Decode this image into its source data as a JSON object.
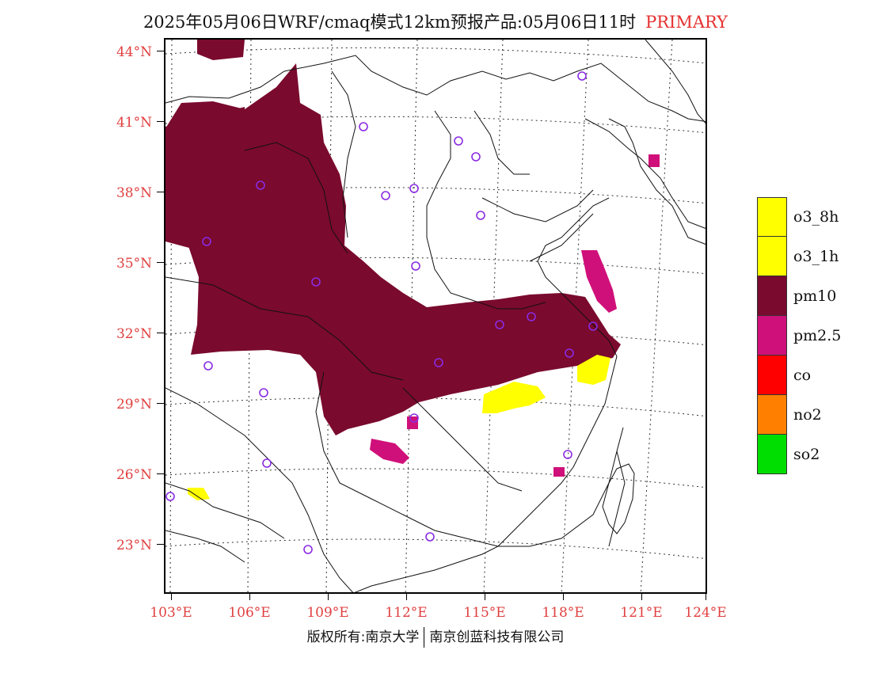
{
  "title": {
    "text": "2025年05月06日WRF/cmaq模式12km预报产品:05月06日11时",
    "tag": "PRIMARY",
    "tag_color": "#e53030"
  },
  "map": {
    "projection": "lambert",
    "lon_range": [
      103,
      124
    ],
    "lat_range": [
      22,
      44
    ],
    "lat_labels": [
      "44°N",
      "41°N",
      "38°N",
      "35°N",
      "32°N",
      "29°N",
      "26°N",
      "23°N"
    ],
    "lon_labels": [
      "103°E",
      "106°E",
      "109°E",
      "112°E",
      "115°E",
      "118°E",
      "121°E",
      "124°E"
    ],
    "label_color": "#e04040",
    "fill_colors": {
      "pm10": "#7a0a2e",
      "pm25": "#d0107a",
      "o3": "#ffff00"
    },
    "station_marker_color": "#8a2be2",
    "station_icon": "circle-marker-icon"
  },
  "legend": {
    "items": [
      {
        "label": "o3_8h",
        "color": "#ffff00"
      },
      {
        "label": "o3_1h",
        "color": "#ffff00"
      },
      {
        "label": "pm10",
        "color": "#7a0a2e"
      },
      {
        "label": "pm2.5",
        "color": "#d0107a"
      },
      {
        "label": "co",
        "color": "#ff0000"
      },
      {
        "label": "no2",
        "color": "#ff8000"
      },
      {
        "label": "so2",
        "color": "#00dd00"
      }
    ]
  },
  "footer": {
    "left": "版权所有:南京大学",
    "right": "南京创蓝科技有限公司"
  }
}
